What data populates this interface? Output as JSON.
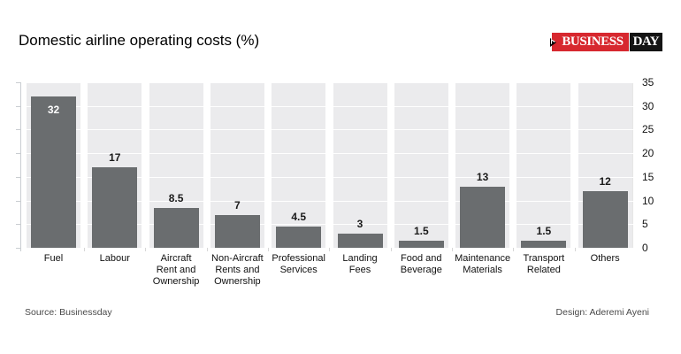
{
  "header": {
    "title": "Domestic airline operating costs (%)"
  },
  "logo": {
    "business": "BUSINESS",
    "day": "DAY",
    "red_color": "#d7282f",
    "black_color": "#141414"
  },
  "footer": {
    "source": "Source: Businessday",
    "design": "Design: Aderemi Ayeni"
  },
  "chart_data": {
    "type": "bar",
    "title": "Domestic airline operating costs (%)",
    "categories": [
      "Fuel",
      "Labour",
      "Aircraft Rent and Ownership",
      "Non-Aircraft Rents and Ownership",
      "Professional Services",
      "Landing Fees",
      "Food and Beverage",
      "Maintenance Materials",
      "Transport Related",
      "Others"
    ],
    "category_lines": [
      [
        "Fuel"
      ],
      [
        "Labour"
      ],
      [
        "Aircraft",
        "Rent and",
        "Ownership"
      ],
      [
        "Non-Aircraft",
        "Rents and",
        "Ownership"
      ],
      [
        "Professional",
        "Services"
      ],
      [
        "Landing",
        "Fees"
      ],
      [
        "Food and",
        "Beverage"
      ],
      [
        "Maintenance",
        "Materials"
      ],
      [
        "Transport",
        "Related"
      ],
      [
        "Others"
      ]
    ],
    "values": [
      32,
      17,
      8.5,
      7,
      4.5,
      3,
      1.5,
      13,
      1.5,
      12
    ],
    "value_labels": [
      "32",
      "17",
      "8.5",
      "7",
      "4.5",
      "3",
      "1.5",
      "13",
      "1.5",
      "12"
    ],
    "value_label_inside": [
      true,
      false,
      false,
      false,
      false,
      false,
      false,
      false,
      false,
      false
    ],
    "xlabel": "",
    "ylabel": "",
    "ylim": [
      0,
      35
    ],
    "yticks": [
      0,
      5,
      10,
      15,
      20,
      25,
      30,
      35
    ],
    "ytick_side": "right",
    "grid": true,
    "legend": "none",
    "bar_color": "#6a6d6f",
    "band_color": "#ebebed"
  }
}
